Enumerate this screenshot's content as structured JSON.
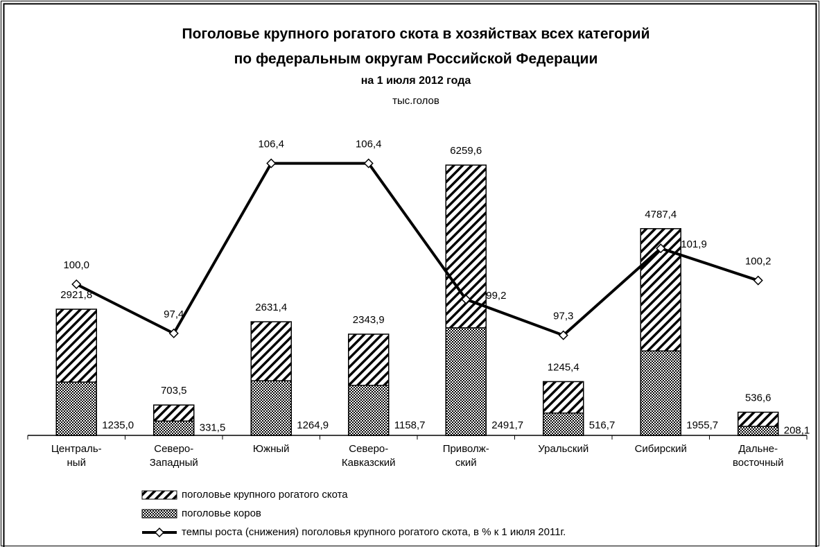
{
  "chart_data": {
    "type": "bar",
    "title": [
      "Поголовье крупного рогатого скота в хозяйствах всех категорий",
      "по федеральным округам Российской Федерации"
    ],
    "subtitle": "на 1 июля 2012 года",
    "unit": "тыс.голов",
    "categories": [
      [
        "Централь-",
        "ный"
      ],
      [
        "Северо-",
        "Западный"
      ],
      [
        "Южный"
      ],
      [
        "Северо-",
        "Кавказский"
      ],
      [
        "Приволж-",
        "ский"
      ],
      [
        "Уральский"
      ],
      [
        "Сибирский"
      ],
      [
        "Дальне-",
        "восточный"
      ]
    ],
    "ylim": [
      0,
      7000
    ],
    "y2lim": [
      92,
      108
    ],
    "series": [
      {
        "name": "поголовье крупного рогатого скота",
        "type": "bar",
        "pattern": "hatch",
        "color": "#000000",
        "values": [
          2921.8,
          703.5,
          2631.4,
          2343.9,
          6259.6,
          1245.4,
          4787.4,
          536.6
        ],
        "value_labels": [
          "2921,8",
          "703,5",
          "2631,4",
          "2343,9",
          "6259,6",
          "1245,4",
          "4787,4",
          "536,6"
        ]
      },
      {
        "name": "поголовье коров",
        "type": "bar",
        "pattern": "checker",
        "color": "#000000",
        "values": [
          1235.0,
          331.5,
          1264.9,
          1158.7,
          2491.7,
          516.7,
          1955.7,
          208.1
        ],
        "value_labels": [
          "1235,0",
          "331,5",
          "1264,9",
          "1158,7",
          "2491,7",
          "516,7",
          "1955,7",
          "208,1"
        ]
      },
      {
        "name": "темпы роста (снижения) поголовья крупного рогатого скота, в % к 1 июля 2011г.",
        "type": "line",
        "axis": "y2",
        "color": "#000000",
        "values": [
          100.0,
          97.4,
          106.4,
          106.4,
          99.2,
          97.3,
          101.9,
          100.2
        ],
        "value_labels": [
          "100,0",
          "97,4",
          "106,4",
          "106,4",
          "99,2",
          "97,3",
          "101,9",
          "100,2"
        ]
      }
    ]
  }
}
